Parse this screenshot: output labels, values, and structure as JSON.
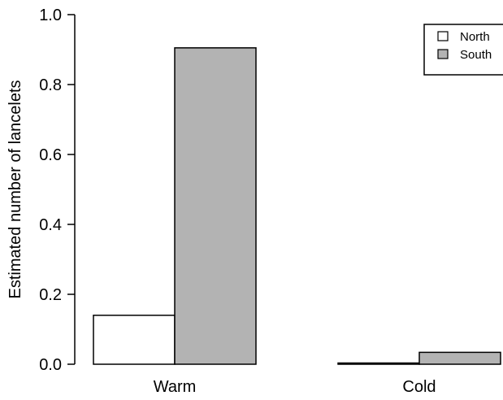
{
  "chart_data": {
    "type": "bar",
    "categories": [
      "Warm",
      "Cold"
    ],
    "series": [
      {
        "name": "North",
        "values": [
          0.14,
          0.003
        ]
      },
      {
        "name": "South",
        "values": [
          0.905,
          0.034
        ]
      }
    ],
    "ylabel": "Estimated number of lancelets",
    "xlabel": "",
    "ylim": [
      0,
      1.0
    ],
    "yticks": [
      "0.0",
      "0.2",
      "0.4",
      "0.6",
      "0.8",
      "1.0"
    ],
    "legend_position": "top-right",
    "grid": false,
    "colors": {
      "North": "#ffffff",
      "South": "#b3b3b3",
      "stroke": "#000000"
    }
  }
}
